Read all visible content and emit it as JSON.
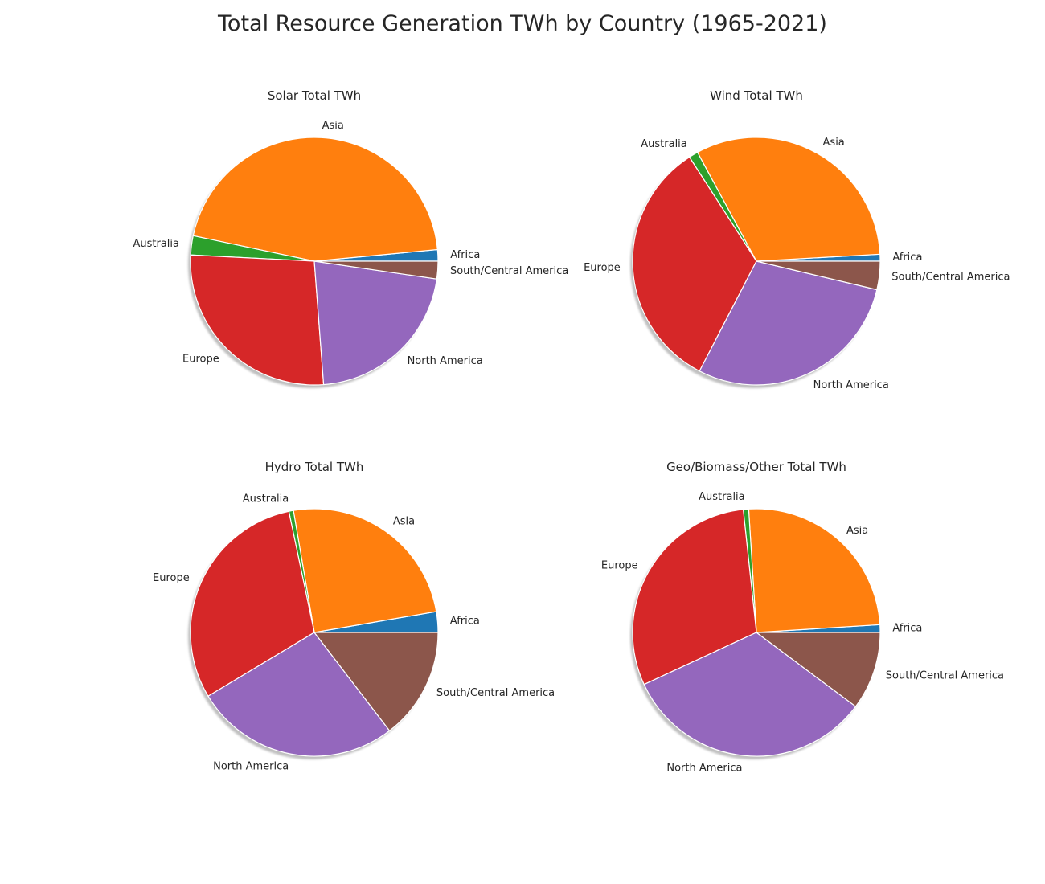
{
  "title": "Total Resource Generation TWh by Country (1965-2021)",
  "colors": {
    "Africa": "#1f77b4",
    "Asia": "#ff7f0e",
    "Australia": "#2ca02c",
    "Europe": "#d62728",
    "North America": "#9467bd",
    "South/Central America": "#8c564b"
  },
  "chart_data": [
    {
      "type": "pie",
      "title": "Solar Total TWh",
      "start_angle_deg": 0,
      "shadow": true,
      "labels": [
        "Africa",
        "Asia",
        "Australia",
        "Europe",
        "North America",
        "South/Central America"
      ],
      "values": [
        1.5,
        45.2,
        2.5,
        27.0,
        21.5,
        2.3
      ]
    },
    {
      "type": "pie",
      "title": "Wind Total TWh",
      "start_angle_deg": 0,
      "shadow": true,
      "labels": [
        "Africa",
        "Asia",
        "Australia",
        "Europe",
        "North America",
        "South/Central America"
      ],
      "values": [
        0.9,
        32.0,
        1.2,
        33.3,
        28.9,
        3.7
      ]
    },
    {
      "type": "pie",
      "title": "Hydro Total TWh",
      "start_angle_deg": 0,
      "shadow": true,
      "labels": [
        "Africa",
        "Asia",
        "Australia",
        "Europe",
        "North America",
        "South/Central America"
      ],
      "values": [
        2.7,
        25.0,
        0.6,
        30.3,
        26.8,
        14.6
      ]
    },
    {
      "type": "pie",
      "title": "Geo/Biomass/Other Total TWh",
      "start_angle_deg": 0,
      "shadow": true,
      "labels": [
        "Africa",
        "Asia",
        "Australia",
        "Europe",
        "North America",
        "South/Central America"
      ],
      "values": [
        1.0,
        25.0,
        0.7,
        30.2,
        32.9,
        10.2
      ]
    }
  ]
}
